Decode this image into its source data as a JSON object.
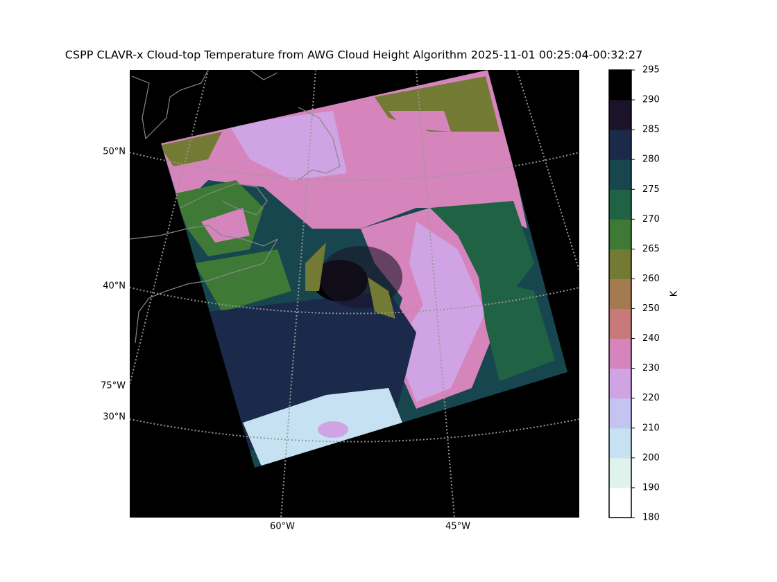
{
  "title": "CSPP CLAVR-x Cloud-top Temperature from AWG Cloud Height Algorithm 2025-11-01 00:25:04-00:32:27",
  "map": {
    "lat_labels": [
      "50°N",
      "40°N",
      "30°N"
    ],
    "lon_labels": [
      "75°W",
      "60°W",
      "45°W"
    ]
  },
  "colorbar": {
    "label": "K",
    "ticks": [
      180,
      190,
      200,
      210,
      220,
      230,
      240,
      250,
      260,
      265,
      270,
      275,
      280,
      285,
      290,
      295
    ],
    "colors": [
      "#ffffff",
      "#dff3ec",
      "#c6e2f2",
      "#c4c4f2",
      "#d0a4e4",
      "#d585bb",
      "#c87a7a",
      "#a67a50",
      "#737a34",
      "#3e7a35",
      "#1f6344",
      "#17464f",
      "#1b2a4a",
      "#1b1428",
      "#000000"
    ]
  }
}
